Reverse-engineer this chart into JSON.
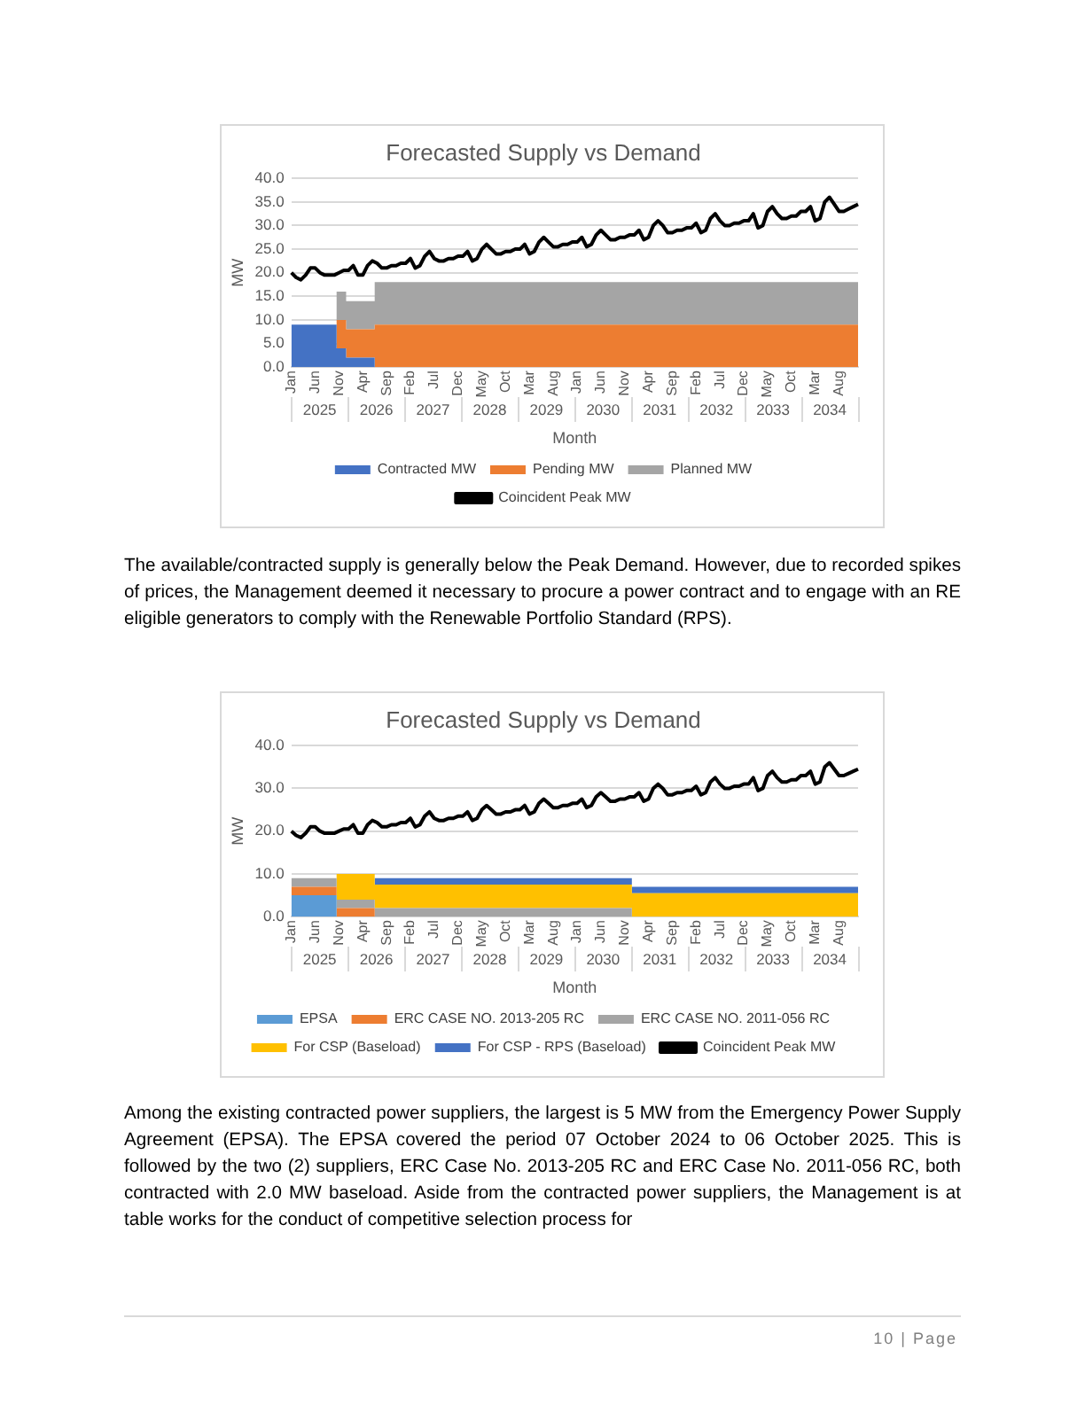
{
  "chart_data": [
    {
      "type": "area",
      "title": "Forecasted Supply vs Demand",
      "xlabel": "Month",
      "ylabel": "MW",
      "stacked": true,
      "grid": "y",
      "legend": "bottom",
      "marker": "none",
      "categories": [
        "Jan",
        null,
        null,
        null,
        null,
        "Jun",
        null,
        null,
        null,
        null,
        "Nov",
        null,
        null,
        null,
        null,
        "Apr",
        null,
        null,
        null,
        null,
        "Sep",
        null,
        null,
        null,
        null,
        "Feb",
        null,
        null,
        null,
        null,
        "Jul",
        null,
        null,
        null,
        null,
        "Dec",
        null,
        null,
        null,
        null,
        "May",
        null,
        null,
        null,
        null,
        "Oct",
        null,
        null,
        null,
        null,
        "Mar",
        null,
        null,
        null,
        null,
        "Aug",
        null,
        null,
        null,
        null,
        "Jan",
        null,
        null,
        null,
        null,
        "Jun",
        null,
        null,
        null,
        null,
        "Nov",
        null,
        null,
        null,
        null,
        "Apr",
        null,
        null,
        null,
        null,
        "Sep",
        null,
        null,
        null,
        null,
        "Feb",
        null,
        null,
        null,
        null,
        "Jul",
        null,
        null,
        null,
        null,
        "Dec",
        null,
        null,
        null,
        null,
        "May",
        null,
        null,
        null,
        null,
        "Oct",
        null,
        null,
        null,
        null,
        "Mar",
        null,
        null,
        null,
        null,
        "Aug",
        null,
        null,
        null,
        null
      ],
      "ylim": [
        0,
        40
      ],
      "yticks": [
        {
          "value": 0,
          "label": "0.0"
        },
        {
          "value": 5,
          "label": "5.0"
        },
        {
          "value": 10,
          "label": "10.0"
        },
        {
          "value": 15,
          "label": "15.0"
        },
        {
          "value": 20,
          "label": "20.0"
        },
        {
          "value": 25,
          "label": "25.0"
        },
        {
          "value": 30,
          "label": "30.0"
        },
        {
          "value": 35,
          "label": "35.0"
        },
        {
          "value": 40,
          "label": "40.0"
        }
      ],
      "series": [
        {
          "name": "Contracted MW",
          "color": "#4472c4",
          "values": [
            9,
            9,
            9,
            9,
            9,
            9,
            9,
            9,
            9,
            9,
            4,
            4,
            2,
            2,
            2,
            2,
            2,
            2,
            0,
            0,
            0,
            0,
            0,
            0,
            0,
            0,
            0,
            0,
            0,
            0,
            0,
            0,
            0,
            0,
            0,
            0,
            0,
            0,
            0,
            0,
            0,
            0,
            0,
            0,
            0,
            0,
            0,
            0,
            0,
            0,
            0,
            0,
            0,
            0,
            0,
            0,
            0,
            0,
            0,
            0,
            0,
            0,
            0,
            0,
            0,
            0,
            0,
            0,
            0,
            0,
            0,
            0,
            0,
            0,
            0,
            0,
            0,
            0,
            0,
            0,
            0,
            0,
            0,
            0,
            0,
            0,
            0,
            0,
            0,
            0,
            0,
            0,
            0,
            0,
            0,
            0,
            0,
            0,
            0,
            0,
            0,
            0,
            0,
            0,
            0,
            0,
            0,
            0,
            0,
            0,
            0,
            0,
            0,
            0,
            0,
            0,
            0,
            0,
            0,
            0
          ]
        },
        {
          "name": "Pending MW",
          "color": "#ed7d31",
          "values": [
            0,
            0,
            0,
            0,
            0,
            0,
            0,
            0,
            0,
            0,
            6,
            6,
            6,
            6,
            6,
            6,
            6,
            6,
            9,
            9,
            9,
            9,
            9,
            9,
            9,
            9,
            9,
            9,
            9,
            9,
            9,
            9,
            9,
            9,
            9,
            9,
            9,
            9,
            9,
            9,
            9,
            9,
            9,
            9,
            9,
            9,
            9,
            9,
            9,
            9,
            9,
            9,
            9,
            9,
            9,
            9,
            9,
            9,
            9,
            9,
            9,
            9,
            9,
            9,
            9,
            9,
            9,
            9,
            9,
            9,
            9,
            9,
            9,
            9,
            9,
            9,
            9,
            9,
            9,
            9,
            9,
            9,
            9,
            9,
            9,
            9,
            9,
            9,
            9,
            9,
            9,
            9,
            9,
            9,
            9,
            9,
            9,
            9,
            9,
            9,
            9,
            9,
            9,
            9,
            9,
            9,
            9,
            9,
            9,
            9,
            9,
            9,
            9,
            9,
            9,
            9,
            9,
            9,
            9,
            9
          ]
        },
        {
          "name": "Planned MW",
          "color": "#a5a5a5",
          "values": [
            0,
            0,
            0,
            0,
            0,
            0,
            0,
            0,
            0,
            0,
            6,
            6,
            6,
            6,
            6,
            6,
            6,
            6,
            9,
            9,
            9,
            9,
            9,
            9,
            9,
            9,
            9,
            9,
            9,
            9,
            9,
            9,
            9,
            9,
            9,
            9,
            9,
            9,
            9,
            9,
            9,
            9,
            9,
            9,
            9,
            9,
            9,
            9,
            9,
            9,
            9,
            9,
            9,
            9,
            9,
            9,
            9,
            9,
            9,
            9,
            9,
            9,
            9,
            9,
            9,
            9,
            9,
            9,
            9,
            9,
            9,
            9,
            9,
            9,
            9,
            9,
            9,
            9,
            9,
            9,
            9,
            9,
            9,
            9,
            9,
            9,
            9,
            9,
            9,
            9,
            9,
            9,
            9,
            9,
            9,
            9,
            9,
            9,
            9,
            9,
            9,
            9,
            9,
            9,
            9,
            9,
            9,
            9,
            9,
            9,
            9,
            9,
            9,
            9,
            9,
            9,
            9,
            9,
            9,
            9
          ]
        },
        {
          "name": "Coincident Peak MW",
          "type": "line",
          "color": "#000000",
          "values": [
            20,
            19,
            18.5,
            19.5,
            21,
            21,
            20,
            19.5,
            19.5,
            19.5,
            20,
            20.5,
            20.5,
            21.5,
            19.5,
            19.5,
            21.5,
            22.5,
            22,
            21,
            21,
            21.5,
            21.5,
            22,
            22,
            23,
            21,
            21.5,
            23.5,
            24.5,
            23,
            22.5,
            22.5,
            23,
            23,
            23.5,
            23.5,
            24.5,
            22.5,
            23,
            25,
            26,
            25,
            24,
            24,
            24.5,
            24.5,
            25,
            25,
            26,
            24,
            24.5,
            26.5,
            27.5,
            26.5,
            25.5,
            25.5,
            26,
            26,
            26.5,
            26.5,
            27.5,
            25.5,
            26,
            28,
            29,
            28,
            27,
            27,
            27.5,
            27.5,
            28,
            28,
            29,
            27,
            27.5,
            30,
            31,
            30,
            28.5,
            28.5,
            29,
            29,
            29.5,
            29.5,
            30.5,
            28.5,
            29,
            31.5,
            32.5,
            31,
            30,
            30,
            30.5,
            30.5,
            31,
            31,
            32.5,
            29.5,
            30,
            33,
            34,
            32.5,
            31.5,
            31.5,
            32,
            32,
            33,
            33,
            34,
            31,
            31.5,
            35,
            36,
            34.5,
            33,
            33,
            33.5,
            34,
            34.5
          ]
        }
      ],
      "annotations": [
        {
          "text": "2025"
        },
        {
          "text": "2026"
        },
        {
          "text": "2027"
        },
        {
          "text": "2028"
        },
        {
          "text": "2029"
        },
        {
          "text": "2030"
        },
        {
          "text": "2031"
        },
        {
          "text": "2032"
        },
        {
          "text": "2033"
        },
        {
          "text": "2034"
        },
        "The available/contracted supply is generally below the Peak Demand. However, due to recorded spikes of prices, the Management deemed it necessary to procure a power contract and to engage with an RE eligible generators to comply with the Renewable Portfolio Standard (RPS)."
      ]
    },
    {
      "type": "area",
      "title": "Forecasted Supply vs Demand",
      "xlabel": "Month",
      "ylabel": "MW",
      "stacked": true,
      "grid": "y",
      "legend": "bottom",
      "marker": "none",
      "categories": [
        "Jan",
        null,
        null,
        null,
        null,
        "Jun",
        null,
        null,
        null,
        null,
        "Nov",
        null,
        null,
        null,
        null,
        "Apr",
        null,
        null,
        null,
        null,
        "Sep",
        null,
        null,
        null,
        null,
        "Feb",
        null,
        null,
        null,
        null,
        "Jul",
        null,
        null,
        null,
        null,
        "Dec",
        null,
        null,
        null,
        null,
        "May",
        null,
        null,
        null,
        null,
        "Oct",
        null,
        null,
        null,
        null,
        "Mar",
        null,
        null,
        null,
        null,
        "Aug",
        null,
        null,
        null,
        null,
        "Jan",
        null,
        null,
        null,
        null,
        "Jun",
        null,
        null,
        null,
        null,
        "Nov",
        null,
        null,
        null,
        null,
        "Apr",
        null,
        null,
        null,
        null,
        "Sep",
        null,
        null,
        null,
        null,
        "Feb",
        null,
        null,
        null,
        null,
        "Jul",
        null,
        null,
        null,
        null,
        "Dec",
        null,
        null,
        null,
        null,
        "May",
        null,
        null,
        null,
        null,
        "Oct",
        null,
        null,
        null,
        null,
        "Mar",
        null,
        null,
        null,
        null,
        "Aug",
        null,
        null,
        null,
        null
      ],
      "ylim": [
        0,
        40
      ],
      "yticks": [
        {
          "value": 0,
          "label": "0.0"
        },
        {
          "value": 10,
          "label": "10.0"
        },
        {
          "value": 20,
          "label": "20.0"
        },
        {
          "value": 30,
          "label": "30.0"
        },
        {
          "value": 40,
          "label": "40.0"
        }
      ],
      "series": [
        {
          "name": "EPSA",
          "color": "#5b9bd5",
          "values": [
            5,
            5,
            5,
            5,
            5,
            5,
            5,
            5,
            5,
            5,
            0,
            0,
            0,
            0,
            0,
            0,
            0,
            0,
            0,
            0,
            0,
            0,
            0,
            0,
            0,
            0,
            0,
            0,
            0,
            0,
            0,
            0,
            0,
            0,
            0,
            0,
            0,
            0,
            0,
            0,
            0,
            0,
            0,
            0,
            0,
            0,
            0,
            0,
            0,
            0,
            0,
            0,
            0,
            0,
            0,
            0,
            0,
            0,
            0,
            0,
            0,
            0,
            0,
            0,
            0,
            0,
            0,
            0,
            0,
            0,
            0,
            0,
            0,
            0,
            0,
            0,
            0,
            0,
            0,
            0,
            0,
            0,
            0,
            0,
            0,
            0,
            0,
            0,
            0,
            0,
            0,
            0,
            0,
            0,
            0,
            0,
            0,
            0,
            0,
            0,
            0,
            0,
            0,
            0,
            0,
            0,
            0,
            0,
            0,
            0,
            0,
            0,
            0,
            0,
            0,
            0,
            0,
            0,
            0,
            0
          ]
        },
        {
          "name": "ERC CASE NO. 2013-205 RC",
          "color": "#ed7d31",
          "values": [
            2,
            2,
            2,
            2,
            2,
            2,
            2,
            2,
            2,
            2,
            2,
            2,
            2,
            2,
            2,
            2,
            2,
            2,
            0,
            0,
            0,
            0,
            0,
            0,
            0,
            0,
            0,
            0,
            0,
            0,
            0,
            0,
            0,
            0,
            0,
            0,
            0,
            0,
            0,
            0,
            0,
            0,
            0,
            0,
            0,
            0,
            0,
            0,
            0,
            0,
            0,
            0,
            0,
            0,
            0,
            0,
            0,
            0,
            0,
            0,
            0,
            0,
            0,
            0,
            0,
            0,
            0,
            0,
            0,
            0,
            0,
            0,
            0,
            0,
            0,
            0,
            0,
            0,
            0,
            0,
            0,
            0,
            0,
            0,
            0,
            0,
            0,
            0,
            0,
            0,
            0,
            0,
            0,
            0,
            0,
            0,
            0,
            0,
            0,
            0,
            0,
            0,
            0,
            0,
            0,
            0,
            0,
            0,
            0,
            0,
            0,
            0,
            0,
            0,
            0,
            0,
            0,
            0,
            0,
            0
          ]
        },
        {
          "name": "ERC CASE NO. 2011-056 RC",
          "color": "#a5a5a5",
          "values": [
            2,
            2,
            2,
            2,
            2,
            2,
            2,
            2,
            2,
            2,
            2,
            2,
            2,
            2,
            2,
            2,
            2,
            2,
            2,
            2,
            2,
            2,
            2,
            2,
            2,
            2,
            2,
            2,
            2,
            2,
            2,
            2,
            2,
            2,
            2,
            2,
            2,
            2,
            2,
            2,
            2,
            2,
            2,
            2,
            2,
            2,
            2,
            2,
            2,
            2,
            2,
            2,
            2,
            2,
            2,
            2,
            2,
            2,
            2,
            2,
            2,
            2,
            2,
            2,
            2,
            2,
            2,
            2,
            2,
            2,
            2,
            2,
            0,
            0,
            0,
            0,
            0,
            0,
            0,
            0,
            0,
            0,
            0,
            0,
            0,
            0,
            0,
            0,
            0,
            0,
            0,
            0,
            0,
            0,
            0,
            0,
            0,
            0,
            0,
            0,
            0,
            0,
            0,
            0,
            0,
            0,
            0,
            0,
            0,
            0,
            0,
            0,
            0,
            0,
            0,
            0,
            0,
            0,
            0,
            0
          ]
        },
        {
          "name": "For CSP (Baseload)",
          "color": "#ffc000",
          "values": [
            0,
            0,
            0,
            0,
            0,
            0,
            0,
            0,
            0,
            0,
            6,
            6,
            6,
            6,
            6,
            6,
            6,
            6,
            5.5,
            5.5,
            5.5,
            5.5,
            5.5,
            5.5,
            5.5,
            5.5,
            5.5,
            5.5,
            5.5,
            5.5,
            5.5,
            5.5,
            5.5,
            5.5,
            5.5,
            5.5,
            5.5,
            5.5,
            5.5,
            5.5,
            5.5,
            5.5,
            5.5,
            5.5,
            5.5,
            5.5,
            5.5,
            5.5,
            5.5,
            5.5,
            5.5,
            5.5,
            5.5,
            5.5,
            5.5,
            5.5,
            5.5,
            5.5,
            5.5,
            5.5,
            5.5,
            5.5,
            5.5,
            5.5,
            5.5,
            5.5,
            5.5,
            5.5,
            5.5,
            5.5,
            5.5,
            5.5,
            5.5,
            5.5,
            5.5,
            5.5,
            5.5,
            5.5,
            5.5,
            5.5,
            5.5,
            5.5,
            5.5,
            5.5,
            5.5,
            5.5,
            5.5,
            5.5,
            5.5,
            5.5,
            5.5,
            5.5,
            5.5,
            5.5,
            5.5,
            5.5,
            5.5,
            5.5,
            5.5,
            5.5,
            5.5,
            5.5,
            5.5,
            5.5,
            5.5,
            5.5,
            5.5,
            5.5,
            5.5,
            5.5,
            5.5,
            5.5,
            5.5,
            5.5,
            5.5,
            5.5,
            5.5,
            5.5,
            5.5,
            5.5
          ]
        },
        {
          "name": "For CSP - RPS (Baseload)",
          "color": "#4472c4",
          "values": [
            0,
            0,
            0,
            0,
            0,
            0,
            0,
            0,
            0,
            0,
            0,
            0,
            0,
            0,
            0,
            0,
            0,
            0,
            1.5,
            1.5,
            1.5,
            1.5,
            1.5,
            1.5,
            1.5,
            1.5,
            1.5,
            1.5,
            1.5,
            1.5,
            1.5,
            1.5,
            1.5,
            1.5,
            1.5,
            1.5,
            1.5,
            1.5,
            1.5,
            1.5,
            1.5,
            1.5,
            1.5,
            1.5,
            1.5,
            1.5,
            1.5,
            1.5,
            1.5,
            1.5,
            1.5,
            1.5,
            1.5,
            1.5,
            1.5,
            1.5,
            1.5,
            1.5,
            1.5,
            1.5,
            1.5,
            1.5,
            1.5,
            1.5,
            1.5,
            1.5,
            1.5,
            1.5,
            1.5,
            1.5,
            1.5,
            1.5,
            1.5,
            1.5,
            1.5,
            1.5,
            1.5,
            1.5,
            1.5,
            1.5,
            1.5,
            1.5,
            1.5,
            1.5,
            1.5,
            1.5,
            1.5,
            1.5,
            1.5,
            1.5,
            1.5,
            1.5,
            1.5,
            1.5,
            1.5,
            1.5,
            1.5,
            1.5,
            1.5,
            1.5,
            1.5,
            1.5,
            1.5,
            1.5,
            1.5,
            1.5,
            1.5,
            1.5,
            1.5,
            1.5,
            1.5,
            1.5,
            1.5,
            1.5,
            1.5,
            1.5,
            1.5,
            1.5,
            1.5,
            1.5
          ]
        },
        {
          "name": "Coincident Peak MW",
          "type": "line",
          "color": "#000000",
          "values": [
            20,
            19,
            18.5,
            19.5,
            21,
            21,
            20,
            19.5,
            19.5,
            19.5,
            20,
            20.5,
            20.5,
            21.5,
            19.5,
            19.5,
            21.5,
            22.5,
            22,
            21,
            21,
            21.5,
            21.5,
            22,
            22,
            23,
            21,
            21.5,
            23.5,
            24.5,
            23,
            22.5,
            22.5,
            23,
            23,
            23.5,
            23.5,
            24.5,
            22.5,
            23,
            25,
            26,
            25,
            24,
            24,
            24.5,
            24.5,
            25,
            25,
            26,
            24,
            24.5,
            26.5,
            27.5,
            26.5,
            25.5,
            25.5,
            26,
            26,
            26.5,
            26.5,
            27.5,
            25.5,
            26,
            28,
            29,
            28,
            27,
            27,
            27.5,
            27.5,
            28,
            28,
            29,
            27,
            27.5,
            30,
            31,
            30,
            28.5,
            28.5,
            29,
            29,
            29.5,
            29.5,
            30.5,
            28.5,
            29,
            31.5,
            32.5,
            31,
            30,
            30,
            30.5,
            30.5,
            31,
            31,
            32.5,
            29.5,
            30,
            33,
            34,
            32.5,
            31.5,
            31.5,
            32,
            32,
            33,
            33,
            34,
            31,
            31.5,
            35,
            36,
            34.5,
            33,
            33,
            33.5,
            34,
            34.5
          ]
        }
      ],
      "annotations": [
        {
          "text": "2025"
        },
        {
          "text": "2026"
        },
        {
          "text": "2027"
        },
        {
          "text": "2028"
        },
        {
          "text": "2029"
        },
        {
          "text": "2030"
        },
        {
          "text": "2031"
        },
        {
          "text": "2032"
        },
        {
          "text": "2033"
        },
        {
          "text": "2034"
        },
        "Among the existing contracted power suppliers, the largest is 5 MW from the Emergency Power Supply Agreement (EPSA). The EPSA covered the period 07 October 2024 to 06 October 2025. This is followed by the two (2) suppliers, ERC Case No. 2013-205 RC and ERC Case No. 2011-056 RC, both contracted with 2.0 MW baseload. Aside from the contracted power suppliers, the Management is at table works for the conduct of competitive selection process for",
        "10 | Page"
      ]
    }
  ]
}
